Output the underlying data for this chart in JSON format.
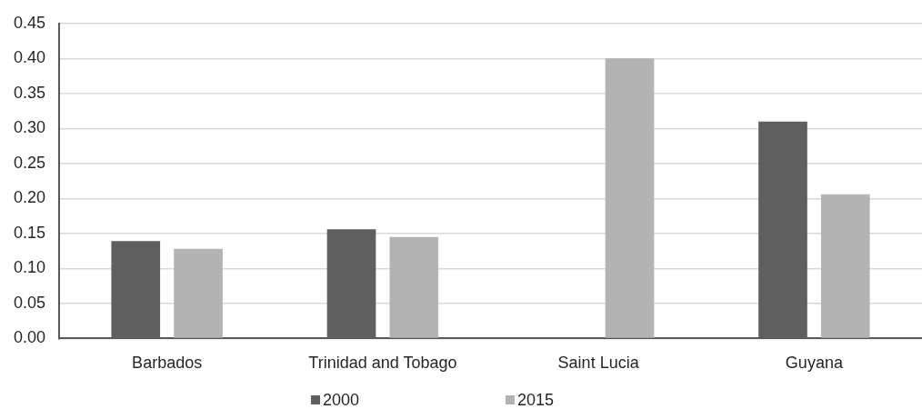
{
  "chart_data": {
    "type": "bar",
    "categories": [
      "Barbados",
      "Trinidad and Tobago",
      "Saint Lucia",
      "Guyana"
    ],
    "series": [
      {
        "name": "2000",
        "color": "#5f5f5f",
        "values": [
          0.139,
          0.156,
          null,
          0.31
        ]
      },
      {
        "name": "2015",
        "color": "#b3b3b3",
        "values": [
          0.128,
          0.145,
          0.4,
          0.206
        ]
      }
    ],
    "ylim": [
      0,
      0.45
    ],
    "yticks": [
      {
        "value": 0,
        "label": "0.00"
      },
      0.05,
      {
        "value": 0.1,
        "label": "0.10"
      },
      0.15,
      {
        "value": 0.2,
        "label": "0.20"
      },
      0.25,
      {
        "value": 0.3,
        "label": "0.30"
      },
      0.35,
      {
        "value": 0.4,
        "label": "0.40"
      },
      0.45
    ],
    "grid": "y",
    "legend": "bottom"
  }
}
